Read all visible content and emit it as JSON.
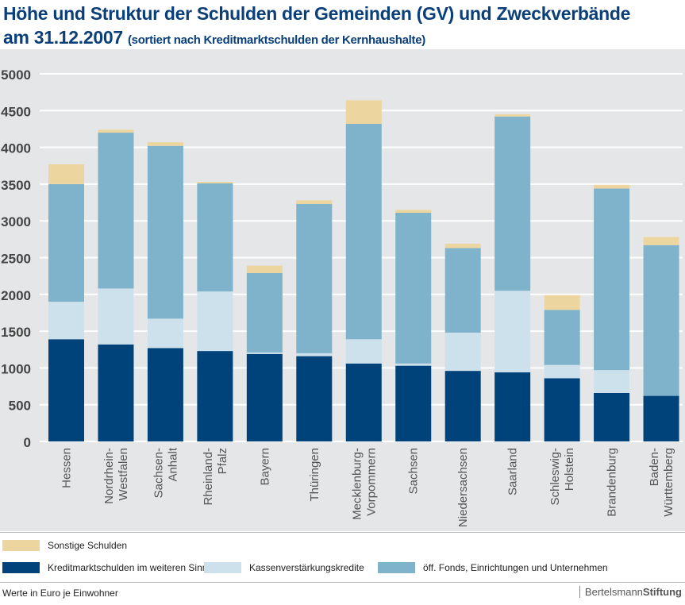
{
  "title": {
    "line1": "Höhe und Struktur der Schulden der Gemeinden (GV) und Zweckverbände",
    "line2": "am 31.12.2007",
    "subtitle": "(sortiert nach Kreditmarktschulden der Kernhaushalte)"
  },
  "chart_data": {
    "type": "bar",
    "stacked": true,
    "categories": [
      [
        "Hessen"
      ],
      [
        "Nordrhein-",
        "Westfalen"
      ],
      [
        "Sachsen-",
        "Anhalt"
      ],
      [
        "Rheinland-",
        "Pfalz"
      ],
      [
        "Bayern"
      ],
      [
        "Thüringen"
      ],
      [
        "Mecklenburg-",
        "Vorpommern"
      ],
      [
        "Sachsen"
      ],
      [
        "Niedersachsen"
      ],
      [
        "Saarland"
      ],
      [
        "Schleswig-",
        "Holstein"
      ],
      [
        "Brandenburg"
      ],
      [
        "Baden-",
        "Württemberg"
      ]
    ],
    "series": [
      {
        "name": "Kreditmarktschulden im weiteren Sinne",
        "color": "#00427a",
        "values": [
          1390,
          1320,
          1270,
          1230,
          1190,
          1160,
          1060,
          1030,
          960,
          940,
          860,
          660,
          620
        ]
      },
      {
        "name": "Kassenverstärkungskredite",
        "color": "#cde1ec",
        "values": [
          510,
          760,
          400,
          810,
          20,
          40,
          330,
          30,
          520,
          1110,
          180,
          310,
          0
        ]
      },
      {
        "name": "öff. Fonds, Einrichtungen und Unternehmen",
        "color": "#7fb3cb",
        "values": [
          1600,
          2120,
          2350,
          1470,
          1080,
          2030,
          2930,
          2050,
          1150,
          2370,
          750,
          2470,
          2050
        ]
      },
      {
        "name": "Sonstige Schulden",
        "color": "#ecd59e",
        "values": [
          270,
          40,
          50,
          20,
          100,
          50,
          320,
          40,
          60,
          30,
          200,
          50,
          110
        ]
      }
    ],
    "ylim": [
      0,
      5000
    ],
    "yticks": [
      0,
      500,
      1000,
      1500,
      2000,
      2500,
      3000,
      3500,
      4000,
      4500,
      5000
    ],
    "grid": true
  },
  "legend": {
    "row1": [
      "Sonstige Schulden"
    ],
    "row2": [
      "Kreditmarktschulden im weiteren Sinne",
      "Kassenverstärkungskredite",
      "öff. Fonds, Einrichtungen und Unternehmen"
    ]
  },
  "footer": {
    "note": "Werte in Euro je Einwohner",
    "brand_a": "Bertelsmann",
    "brand_b": "Stiftung"
  }
}
